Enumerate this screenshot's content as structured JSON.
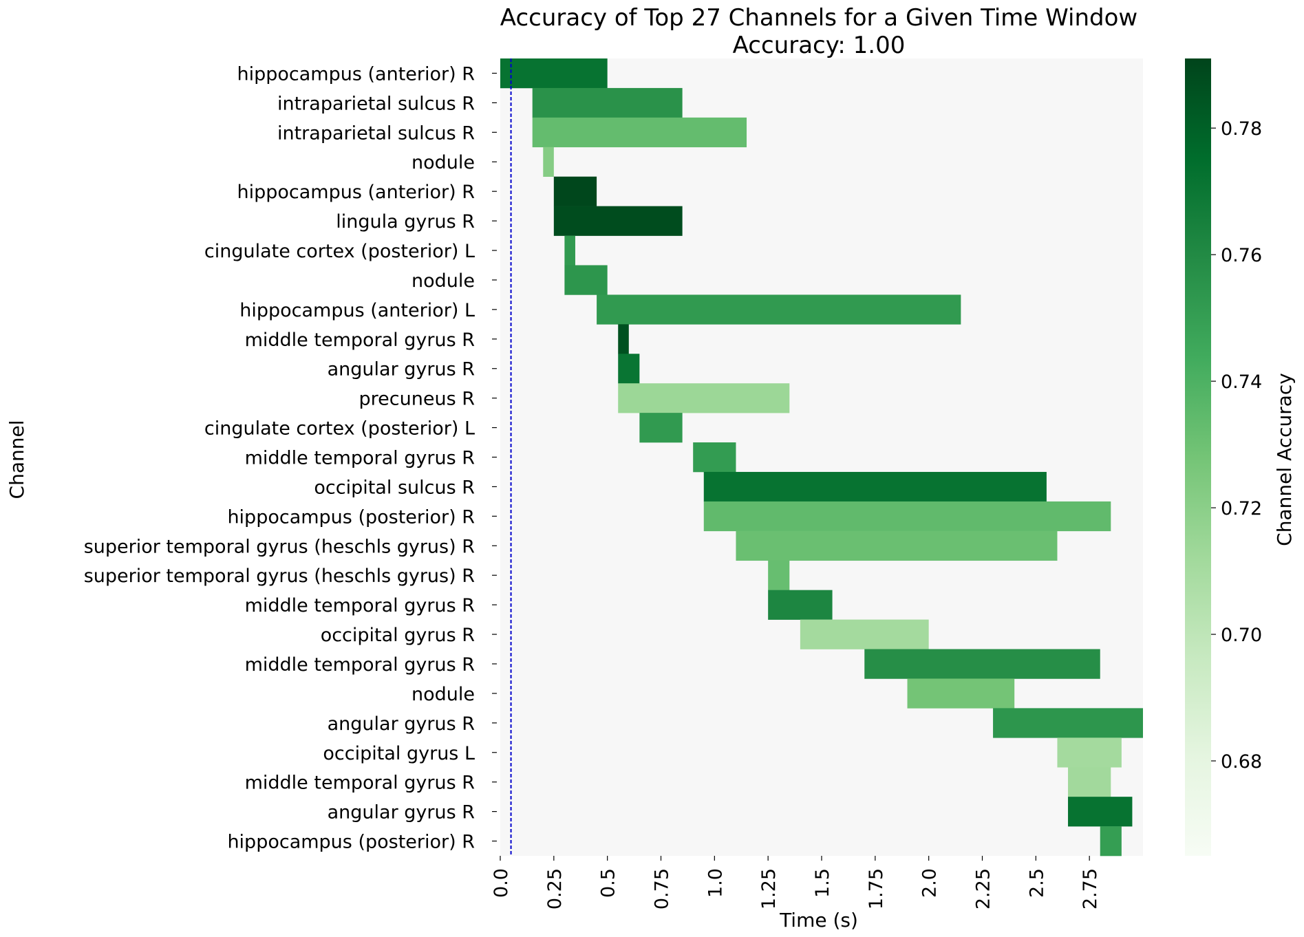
{
  "chart_data": {
    "type": "heatmap",
    "title": "Accuracy of Top 27 Channels for a Given Time Window",
    "subtitle": "Accuracy: 1.00",
    "xlabel": "Time (s)",
    "ylabel": "Channel",
    "colorbar_label": "Channel Accuracy",
    "xlim": [
      0,
      3.0
    ],
    "x_ticks": [
      "0.0",
      "0.25",
      "0.5",
      "0.75",
      "1.0",
      "1.25",
      "1.5",
      "1.75",
      "2.0",
      "2.25",
      "2.5",
      "2.75"
    ],
    "x_tick_values": [
      0.0,
      0.25,
      0.5,
      0.75,
      1.0,
      1.25,
      1.5,
      1.75,
      2.0,
      2.25,
      2.5,
      2.75
    ],
    "colorbar_range": [
      0.665,
      0.791
    ],
    "colorbar_ticks": [
      "0.68",
      "0.70",
      "0.72",
      "0.74",
      "0.76",
      "0.78"
    ],
    "colorbar_tick_values": [
      0.68,
      0.7,
      0.72,
      0.74,
      0.76,
      0.78
    ],
    "marker_line_x": 0.05,
    "colors": {
      "background": "#f7f7f7",
      "marker_line": "#0000cc",
      "colormap": [
        "#f7fcf5",
        "#e5f5e0",
        "#c7e9c0",
        "#a1d99b",
        "#74c476",
        "#41ab5d",
        "#238b45",
        "#006d2c",
        "#00441b"
      ]
    },
    "rows": [
      {
        "label": "hippocampus (anterior) R",
        "start": 0.0,
        "end": 0.5,
        "accuracy": 0.772
      },
      {
        "label": "intraparietal sulcus R",
        "start": 0.15,
        "end": 0.85,
        "accuracy": 0.756
      },
      {
        "label": "intraparietal sulcus R",
        "start": 0.15,
        "end": 1.15,
        "accuracy": 0.733
      },
      {
        "label": "nodule",
        "start": 0.2,
        "end": 0.25,
        "accuracy": 0.722
      },
      {
        "label": "hippocampus (anterior) R",
        "start": 0.25,
        "end": 0.45,
        "accuracy": 0.79
      },
      {
        "label": "lingula gyrus R",
        "start": 0.25,
        "end": 0.85,
        "accuracy": 0.788
      },
      {
        "label": "cingulate cortex (posterior) L",
        "start": 0.3,
        "end": 0.35,
        "accuracy": 0.752
      },
      {
        "label": "nodule",
        "start": 0.3,
        "end": 0.5,
        "accuracy": 0.754
      },
      {
        "label": "hippocampus (anterior) L",
        "start": 0.45,
        "end": 2.15,
        "accuracy": 0.752
      },
      {
        "label": "middle temporal gyrus R",
        "start": 0.55,
        "end": 0.6,
        "accuracy": 0.786
      },
      {
        "label": "angular gyrus R",
        "start": 0.55,
        "end": 0.65,
        "accuracy": 0.771
      },
      {
        "label": "precuneus R",
        "start": 0.55,
        "end": 1.35,
        "accuracy": 0.714
      },
      {
        "label": "cingulate cortex (posterior) L",
        "start": 0.65,
        "end": 0.85,
        "accuracy": 0.752
      },
      {
        "label": "middle temporal gyrus R",
        "start": 0.9,
        "end": 1.1,
        "accuracy": 0.751
      },
      {
        "label": "occipital sulcus R",
        "start": 0.95,
        "end": 2.55,
        "accuracy": 0.772
      },
      {
        "label": "hippocampus (posterior) R",
        "start": 0.95,
        "end": 2.85,
        "accuracy": 0.734
      },
      {
        "label": "superior temporal gyrus (heschls gyrus) R",
        "start": 1.1,
        "end": 2.6,
        "accuracy": 0.731
      },
      {
        "label": "superior temporal gyrus (heschls gyrus) R",
        "start": 1.25,
        "end": 1.35,
        "accuracy": 0.732
      },
      {
        "label": "middle temporal gyrus R",
        "start": 1.25,
        "end": 1.55,
        "accuracy": 0.762
      },
      {
        "label": "occipital gyrus R",
        "start": 1.4,
        "end": 2.0,
        "accuracy": 0.711
      },
      {
        "label": "middle temporal gyrus R",
        "start": 1.7,
        "end": 2.8,
        "accuracy": 0.758
      },
      {
        "label": "nodule",
        "start": 1.9,
        "end": 2.4,
        "accuracy": 0.728
      },
      {
        "label": "angular gyrus R",
        "start": 2.3,
        "end": 3.0,
        "accuracy": 0.754
      },
      {
        "label": "occipital gyrus L",
        "start": 2.6,
        "end": 2.9,
        "accuracy": 0.711
      },
      {
        "label": "middle temporal gyrus R",
        "start": 2.65,
        "end": 2.85,
        "accuracy": 0.712
      },
      {
        "label": "angular gyrus R",
        "start": 2.65,
        "end": 2.95,
        "accuracy": 0.772
      },
      {
        "label": "hippocampus (posterior) R",
        "start": 2.8,
        "end": 2.9,
        "accuracy": 0.75
      }
    ]
  }
}
